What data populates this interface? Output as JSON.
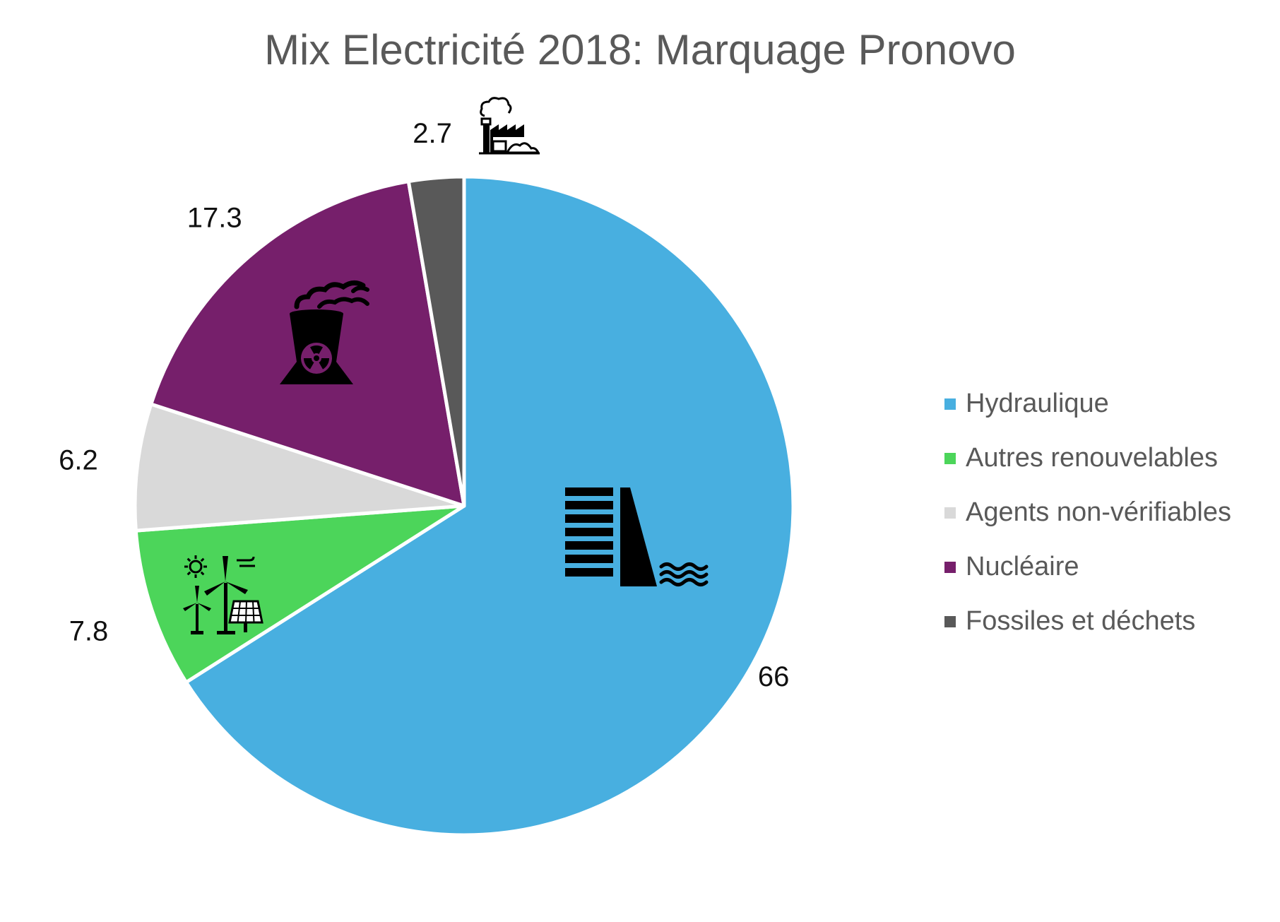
{
  "chart_data": {
    "type": "pie",
    "title": "Mix Electricité 2018: Marquage Pronovo",
    "categories": [
      "Hydraulique",
      "Autres renouvelables",
      "Agents non-vérifiables",
      "Nucléaire",
      "Fossiles et déchets"
    ],
    "values": [
      66,
      7.8,
      6.2,
      17.3,
      2.7
    ],
    "value_labels": [
      "66",
      "7.8",
      "6.2",
      "17.3",
      "2.7"
    ],
    "colors": [
      "#48AFE0",
      "#4CD55A",
      "#D9D9D9",
      "#761F6B",
      "#595959"
    ],
    "icons": [
      "hydro-dam-icon",
      "renewables-icon",
      "",
      "nuclear-plant-icon",
      "factory-icon"
    ],
    "legend_position": "right",
    "start": "top",
    "direction": "clockwise"
  }
}
